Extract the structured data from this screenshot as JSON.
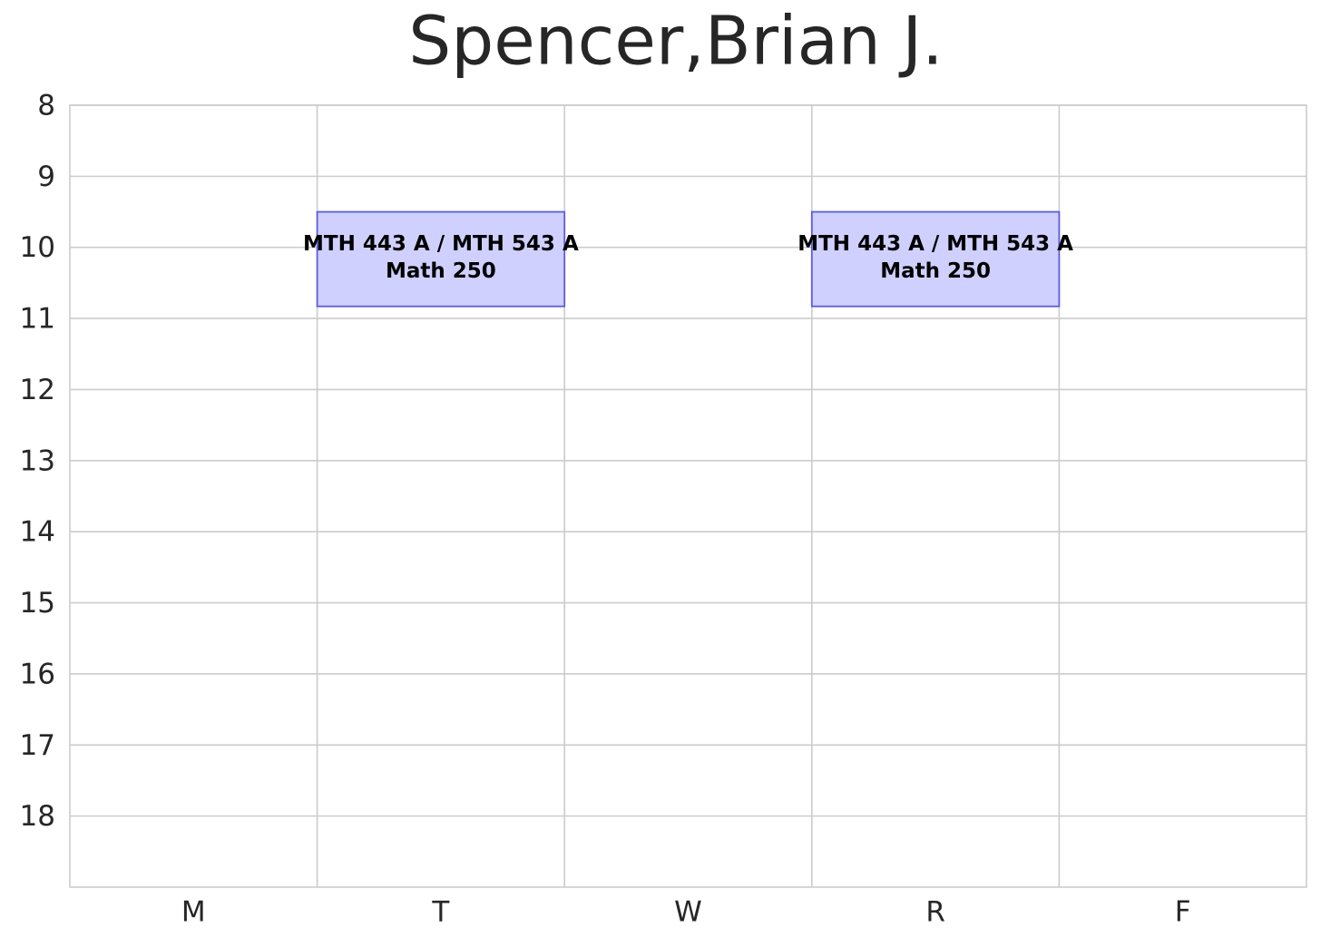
{
  "chart_data": {
    "type": "bar",
    "title": "Spencer,Brian J.",
    "categories": [
      "M",
      "T",
      "W",
      "R",
      "F"
    ],
    "ylim": [
      19,
      8
    ],
    "yticks": [
      8,
      9,
      10,
      11,
      12,
      13,
      14,
      15,
      16,
      17,
      18
    ],
    "grid": true,
    "fill_color": "#d0d0ff",
    "edge_color": "#5c5ce0",
    "events": [
      {
        "day": "T",
        "start": 9.5,
        "end": 10.83,
        "label": "MTH 443 A / MTH 543 A",
        "room": "Math 250"
      },
      {
        "day": "R",
        "start": 9.5,
        "end": 10.83,
        "label": "MTH 443 A / MTH 543 A",
        "room": "Math 250"
      }
    ]
  }
}
